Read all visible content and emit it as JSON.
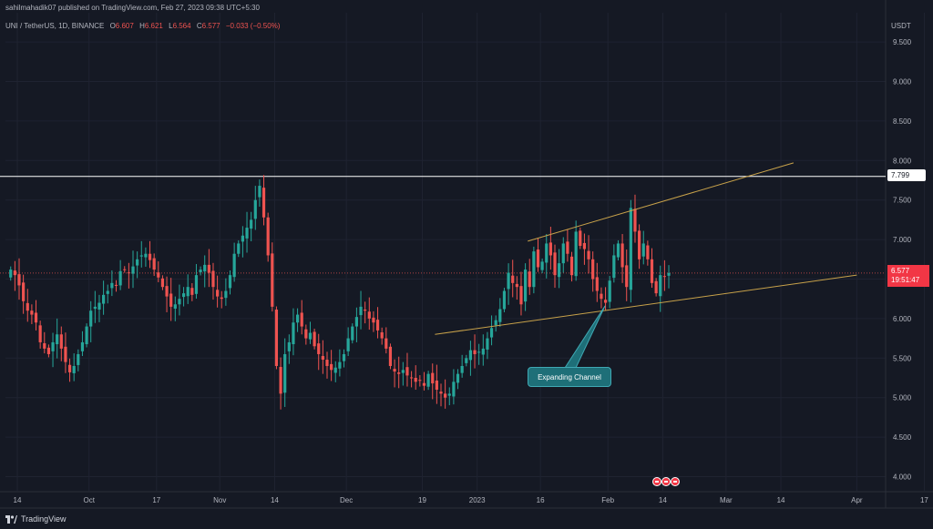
{
  "header": {
    "published": "sahilmahadik07 published on TradingView.com, Feb 27, 2023 09:38 UTC+5:30"
  },
  "legend": {
    "symbol": "UNI / TetherUS, 1D, BINANCE",
    "o_label": "O",
    "o": "6.607",
    "h_label": "H",
    "h": "6.621",
    "l_label": "L",
    "l": "6.564",
    "c_label": "C",
    "c": "6.577",
    "change": "−0.033 (−0.50%)"
  },
  "axis": {
    "unit": "USDT"
  },
  "price_tags": {
    "resistance": "7.799",
    "last_price": "6.577",
    "countdown": "19:51:47"
  },
  "annotation": {
    "label": "Expanding Channel"
  },
  "brand": {
    "name": "TradingView"
  },
  "colors": {
    "up": "#26a69a",
    "down": "#ef5350",
    "trendline": "#c8a24a",
    "resistance": "#ffffff",
    "callout": "#1e6f78"
  },
  "chart_data": {
    "type": "candlestick",
    "title": "UNI / TetherUS, 1D, BINANCE",
    "ylabel": "USDT",
    "ylim": [
      3.75,
      9.75
    ],
    "y_ticks": [
      4.0,
      4.5,
      5.0,
      5.5,
      6.0,
      6.5,
      7.0,
      7.5,
      8.0,
      8.5,
      9.0,
      9.5
    ],
    "y_tick_labels": [
      "4.000",
      "4.500",
      "5.000",
      "5.500",
      "6.000",
      "6.500",
      "7.000",
      "7.500",
      "8.000",
      "8.500",
      "9.000",
      "9.500"
    ],
    "x_ticks": [
      "2022-09-14",
      "2022-10-01",
      "2022-10-17",
      "2022-11-01",
      "2022-11-14",
      "2022-12-01",
      "2022-12-19",
      "2023-01-01",
      "2023-01-16",
      "2023-02-01",
      "2023-02-14",
      "2023-03-01",
      "2023-03-14",
      "2023-04-01",
      "2023-04-17"
    ],
    "x_tick_labels": [
      "14",
      "Oct",
      "17",
      "Nov",
      "14",
      "Dec",
      "19",
      "2023",
      "16",
      "Feb",
      "14",
      "Mar",
      "14",
      "Apr",
      "17"
    ],
    "candle_closes": [
      6.62,
      6.55,
      6.42,
      6.22,
      6.1,
      6.05,
      5.95,
      5.7,
      5.62,
      5.55,
      5.7,
      5.8,
      5.62,
      5.45,
      5.32,
      5.4,
      5.55,
      5.7,
      5.9,
      6.1,
      6.15,
      6.2,
      6.3,
      6.35,
      6.45,
      6.42,
      6.6,
      6.62,
      6.58,
      6.66,
      6.75,
      6.8,
      6.82,
      6.74,
      6.62,
      6.52,
      6.4,
      6.28,
      6.15,
      6.18,
      6.25,
      6.32,
      6.4,
      6.3,
      6.55,
      6.62,
      6.68,
      6.58,
      6.4,
      6.28,
      6.25,
      6.35,
      6.55,
      6.82,
      6.95,
      7.05,
      7.15,
      7.25,
      7.5,
      7.68,
      7.28,
      6.8,
      6.15,
      5.4,
      5.05,
      5.55,
      5.7,
      5.95,
      6.05,
      5.9,
      5.75,
      5.82,
      5.65,
      5.55,
      5.48,
      5.4,
      5.35,
      5.38,
      5.45,
      5.55,
      5.75,
      5.9,
      6.02,
      6.15,
      6.1,
      6.0,
      5.95,
      5.85,
      5.75,
      5.62,
      5.4,
      5.33,
      5.3,
      5.35,
      5.28,
      5.25,
      5.2,
      5.22,
      5.15,
      5.3,
      5.18,
      5.1,
      5.05,
      5.0,
      5.05,
      5.2,
      5.3,
      5.4,
      5.5,
      5.6,
      5.55,
      5.58,
      5.62,
      5.75,
      5.88,
      5.98,
      6.12,
      6.35,
      6.58,
      6.45,
      6.4,
      6.18,
      6.62,
      6.4,
      6.85,
      6.65,
      6.72,
      6.95,
      6.8,
      6.55,
      6.7,
      6.95,
      6.82,
      6.55,
      7.1,
      6.92,
      6.88,
      6.75,
      6.5,
      6.35,
      6.25,
      6.2,
      6.48,
      6.8,
      6.95,
      6.65,
      6.4,
      7.4,
      7.1,
      6.75,
      6.95,
      6.75,
      6.45,
      6.32,
      6.55,
      6.53,
      6.577
    ],
    "support_trendline": {
      "from": [
        "2022-12-22",
        5.8
      ],
      "to": [
        "2023-04-01",
        6.55
      ]
    },
    "resistance_trendline": {
      "from": [
        "2023-01-13",
        6.98
      ],
      "to": [
        "2023-03-17",
        7.97
      ]
    },
    "horizontal_level": 7.799,
    "last_price": 6.577,
    "grid": true,
    "legend_position": "top-left"
  }
}
